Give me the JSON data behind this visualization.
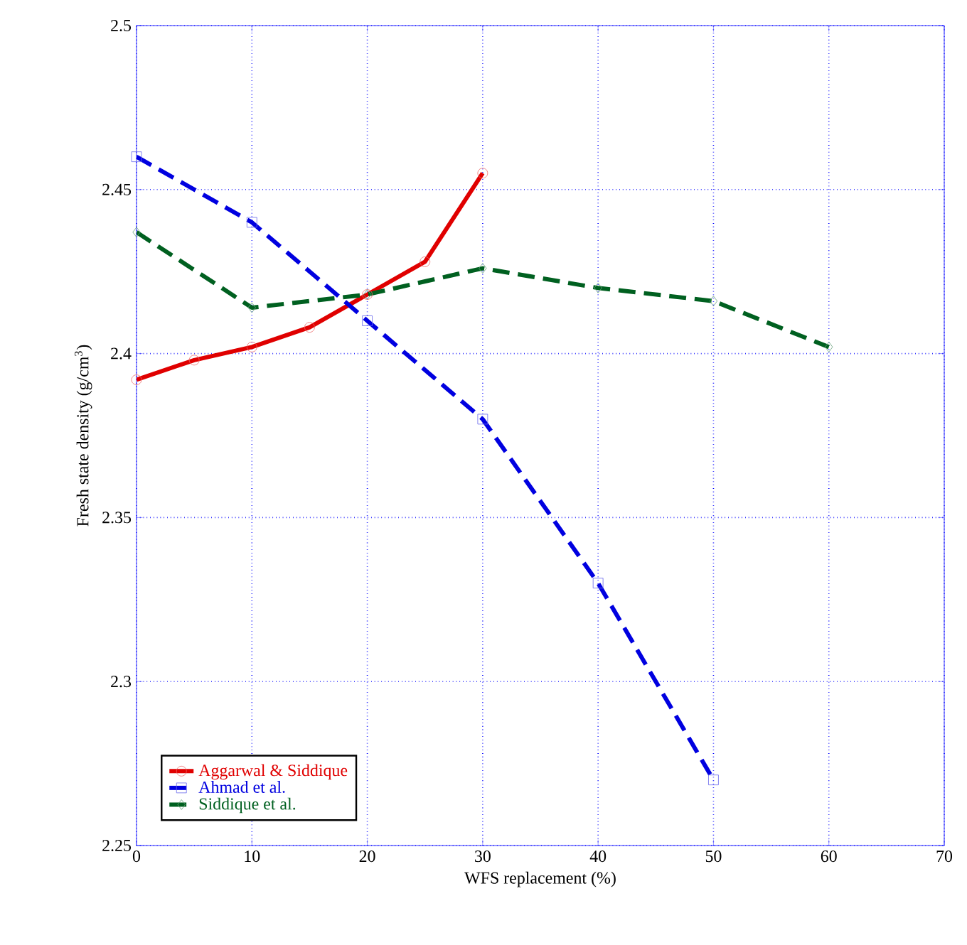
{
  "chart_data": {
    "type": "line",
    "xlabel": "WFS replacement (%)",
    "ylabel": "Fresh state density (g/cm$^{3}$)",
    "xlim": [
      0,
      70
    ],
    "ylim": [
      2.25,
      2.5
    ],
    "xticks": [
      0,
      10,
      20,
      30,
      40,
      50,
      60,
      70
    ],
    "yticks": [
      2.25,
      2.3,
      2.35,
      2.4,
      2.45,
      2.5
    ],
    "grid": true,
    "legend": "bottom left",
    "series": [
      {
        "name": "Aggarwal & Siddique",
        "color": "#e00000",
        "marker": "circle",
        "line_style": "solid",
        "x": [
          0,
          5,
          10,
          15,
          20,
          25,
          30
        ],
        "values": [
          2.392,
          2.398,
          2.402,
          2.408,
          2.418,
          2.428,
          2.455
        ]
      },
      {
        "name": "Ahmad et al.",
        "color": "#0000e0",
        "marker": "square",
        "line_style": "dashed",
        "x": [
          0,
          10,
          20,
          30,
          40,
          50
        ],
        "values": [
          2.46,
          2.44,
          2.41,
          2.38,
          2.33,
          2.27
        ]
      },
      {
        "name": "Siddique et al.",
        "color": "#006020",
        "marker": "diamond",
        "line_style": "dashed",
        "x": [
          0,
          10,
          20,
          30,
          40,
          50,
          60
        ],
        "values": [
          2.437,
          2.414,
          2.418,
          2.426,
          2.42,
          2.416,
          2.402
        ]
      }
    ]
  }
}
